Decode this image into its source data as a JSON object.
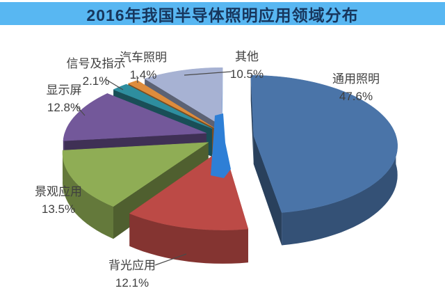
{
  "title": "2016年我国半导体照明应用领域分布",
  "colors": {
    "background": "#ffffff",
    "title_bar_bg": "#58b7f2",
    "title_text": "#17365d",
    "label_text": "#3f3f3f",
    "leader_line": "#4a4a4a",
    "center_highlight": "#2e7fd6"
  },
  "chart_data": {
    "type": "pie",
    "style": "3d-exploded",
    "title": "2016年我国半导体照明应用领域分布",
    "unit": "%",
    "start_angle_deg": 0,
    "direction": "clockwise",
    "legend": "none",
    "slices": [
      {
        "id": "general-lighting",
        "label": "通用照明",
        "value": 47.6,
        "display": "47.6%",
        "color": "#4a74a8"
      },
      {
        "id": "backlight",
        "label": "背光应用",
        "value": 12.1,
        "display": "12.1%",
        "color": "#bc4a46"
      },
      {
        "id": "landscape",
        "label": "景观应用",
        "value": 13.5,
        "display": "13.5%",
        "color": "#8fad55"
      },
      {
        "id": "display-screen",
        "label": "显示屏",
        "value": 12.8,
        "display": "12.8%",
        "color": "#73589a"
      },
      {
        "id": "signal-indication",
        "label": "信号及指示",
        "value": 2.1,
        "display": "2.1%",
        "color": "#2e8e9f"
      },
      {
        "id": "automotive-lighting",
        "label": "汽车照明",
        "value": 1.4,
        "display": "1.4%",
        "color": "#de8c3c"
      },
      {
        "id": "other",
        "label": "其他",
        "value": 10.5,
        "display": "10.5%",
        "color": "#a7b2d3",
        "lit_face": "#2e7fd6"
      }
    ]
  }
}
